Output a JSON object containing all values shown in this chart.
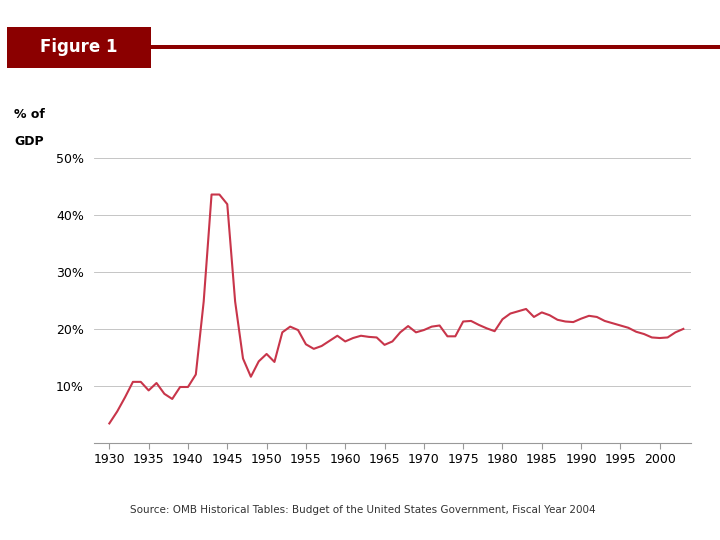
{
  "title": "Figure 1",
  "ylabel_line1": "% of",
  "ylabel_line2": "GDP",
  "source": "Source: OMB Historical Tables: Budget of the United States Government, Fiscal Year 2004",
  "line_color": "#c8354a",
  "title_bg_color": "#8b0000",
  "title_text_color": "#ffffff",
  "header_line_color": "#8b0000",
  "ylim": [
    0,
    55
  ],
  "yticks": [
    10,
    20,
    30,
    40,
    50
  ],
  "ytick_labels": [
    "10%",
    "20%",
    "30%",
    "40%",
    "50%"
  ],
  "xticks": [
    1930,
    1935,
    1940,
    1945,
    1950,
    1955,
    1960,
    1965,
    1970,
    1975,
    1980,
    1985,
    1990,
    1995,
    2000
  ],
  "years": [
    1930,
    1931,
    1932,
    1933,
    1934,
    1935,
    1936,
    1937,
    1938,
    1939,
    1940,
    1941,
    1942,
    1943,
    1944,
    1945,
    1946,
    1947,
    1948,
    1949,
    1950,
    1951,
    1952,
    1953,
    1954,
    1955,
    1956,
    1957,
    1958,
    1959,
    1960,
    1961,
    1962,
    1963,
    1964,
    1965,
    1966,
    1967,
    1968,
    1969,
    1970,
    1971,
    1972,
    1973,
    1974,
    1975,
    1976,
    1977,
    1978,
    1979,
    1980,
    1981,
    1982,
    1983,
    1984,
    1985,
    1986,
    1987,
    1988,
    1989,
    1990,
    1991,
    1992,
    1993,
    1994,
    1995,
    1996,
    1997,
    1998,
    1999,
    2000,
    2001,
    2002,
    2003
  ],
  "values": [
    3.4,
    5.5,
    8.0,
    10.7,
    10.7,
    9.2,
    10.5,
    8.6,
    7.7,
    9.8,
    9.8,
    12.0,
    24.8,
    43.6,
    43.6,
    41.9,
    24.8,
    14.8,
    11.6,
    14.3,
    15.6,
    14.2,
    19.4,
    20.4,
    19.8,
    17.3,
    16.5,
    17.0,
    17.9,
    18.8,
    17.8,
    18.4,
    18.8,
    18.6,
    18.5,
    17.2,
    17.8,
    19.4,
    20.5,
    19.4,
    19.8,
    20.4,
    20.6,
    18.7,
    18.7,
    21.3,
    21.4,
    20.7,
    20.1,
    19.6,
    21.7,
    22.7,
    23.1,
    23.5,
    22.1,
    22.9,
    22.4,
    21.6,
    21.3,
    21.2,
    21.8,
    22.3,
    22.1,
    21.4,
    21.0,
    20.6,
    20.2,
    19.5,
    19.1,
    18.5,
    18.4,
    18.5,
    19.4,
    20.0
  ]
}
